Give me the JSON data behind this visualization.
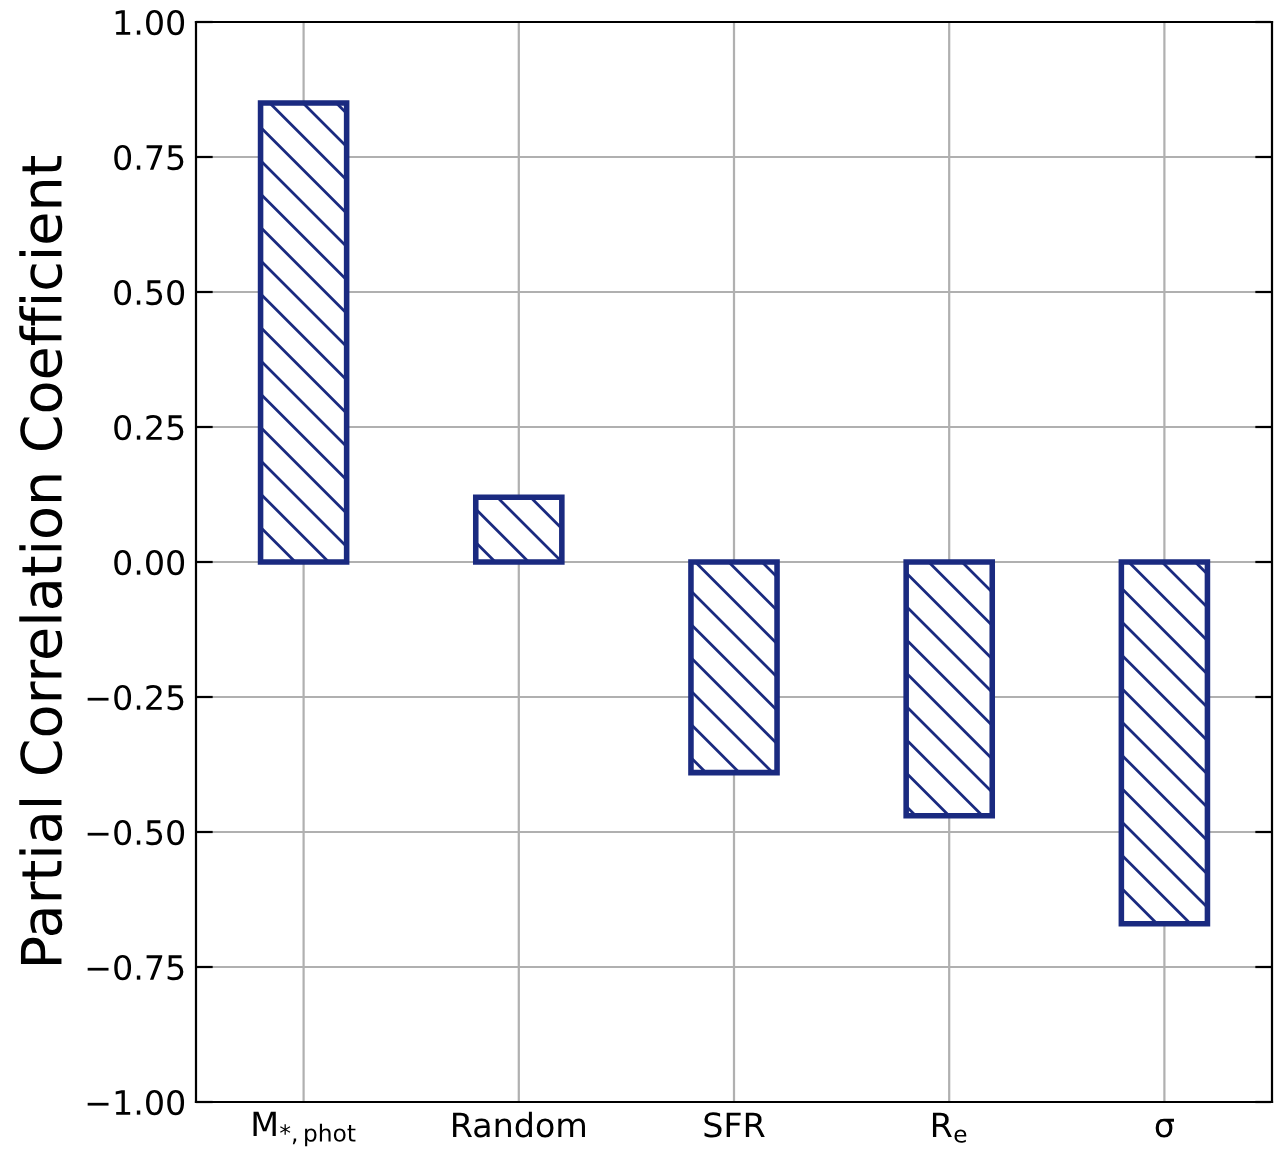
{
  "chart_data": {
    "type": "bar",
    "ylabel": "Partial Correlation Coefficient",
    "categories": [
      "M$_{*,phot}$",
      "Random",
      "SFR",
      "R$_{e}$",
      "σ"
    ],
    "values": [
      0.85,
      0.12,
      -0.39,
      -0.47,
      -0.67
    ],
    "color": "#1a2a80",
    "ylim": [
      -1,
      1
    ],
    "yticks": [
      {
        "value": -1,
        "label": "−1.00"
      },
      {
        "value": -0.75,
        "label": "−0.75"
      },
      {
        "value": -0.5,
        "label": "−0.50"
      },
      {
        "value": -0.25,
        "label": "−0.25"
      },
      {
        "value": 0,
        "label": "0.00"
      },
      {
        "value": 0.25,
        "label": "0.25"
      },
      {
        "value": 0.5,
        "label": "0.50"
      },
      {
        "value": 0.75,
        "label": "0.75"
      },
      {
        "value": 1,
        "label": "1.00"
      }
    ],
    "grid": true
  }
}
